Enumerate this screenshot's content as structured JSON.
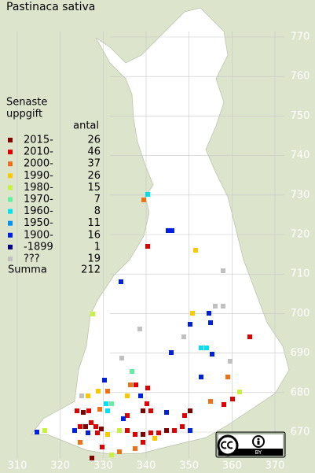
{
  "title": "Pastinaca sativa",
  "legend": {
    "title_lines": [
      "Senaste",
      "uppgift"
    ],
    "count_header": "antal",
    "entries": [
      {
        "label": "2015-",
        "count": 26,
        "color": "#800000"
      },
      {
        "label": "2010-",
        "count": 46,
        "color": "#e00000"
      },
      {
        "label": "2000-",
        "count": 37,
        "color": "#f07018"
      },
      {
        "label": "1990-",
        "count": 26,
        "color": "#f8c800"
      },
      {
        "label": "1980-",
        "count": 15,
        "color": "#c8f040"
      },
      {
        "label": "1970-",
        "count": 7,
        "color": "#60f0a0"
      },
      {
        "label": "1960-",
        "count": 8,
        "color": "#00e0f0"
      },
      {
        "label": "1950-",
        "count": 11,
        "color": "#0090f0"
      },
      {
        "label": "1900-",
        "count": 16,
        "color": "#0020e0"
      },
      {
        "label": "-1899",
        "count": 1,
        "color": "#000080"
      },
      {
        "label": "???",
        "count": 19,
        "color": "#c0c0c0"
      }
    ],
    "total_label": "Summa",
    "total": 212
  },
  "axes": {
    "yticks": [
      770,
      760,
      750,
      740,
      730,
      720,
      710,
      700,
      690,
      680,
      670
    ],
    "xticks": [
      310,
      320,
      330,
      340,
      350,
      360,
      370
    ]
  },
  "license": "BY"
}
